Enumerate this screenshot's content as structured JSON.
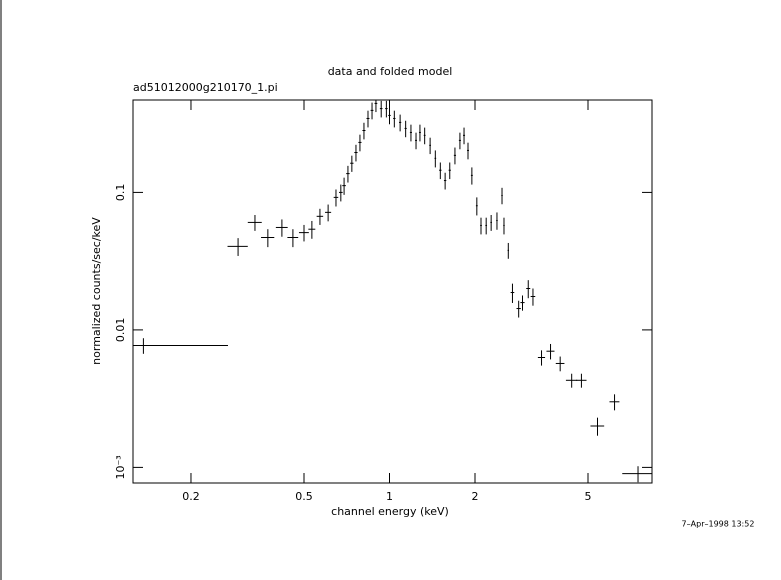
{
  "chart_data": {
    "type": "scatter",
    "title": "data and folded model",
    "subtitle": "ad51012000g210170_1.pi",
    "xlabel": "channel energy (keV)",
    "ylabel": "normalized counts/sec/keV",
    "annotation": "7–Apr–1998 13:52",
    "xscale": "log",
    "yscale": "log",
    "xlim": [
      0.125,
      8.4
    ],
    "ylim": [
      0.00077,
      0.47
    ],
    "xticks": [
      0.2,
      0.5,
      1,
      2,
      5
    ],
    "yticks": [
      0.1,
      0.01,
      {
        "value": 0.001,
        "label": "10⁻³"
      }
    ],
    "color": "#000000",
    "x": [
      0.136,
      0.293,
      0.336,
      0.373,
      0.418,
      0.457,
      0.5,
      0.533,
      0.569,
      0.608,
      0.648,
      0.674,
      0.692,
      0.714,
      0.737,
      0.762,
      0.787,
      0.813,
      0.84,
      0.868,
      0.896,
      0.935,
      0.975,
      1.0,
      1.04,
      1.09,
      1.14,
      1.19,
      1.24,
      1.28,
      1.33,
      1.39,
      1.45,
      1.51,
      1.57,
      1.63,
      1.7,
      1.77,
      1.83,
      1.89,
      1.95,
      2.03,
      2.1,
      2.19,
      2.28,
      2.39,
      2.49,
      2.53,
      2.62,
      2.71,
      2.85,
      2.94,
      3.08,
      3.2,
      3.43,
      3.69,
      3.99,
      4.38,
      4.74,
      5.4,
      6.2,
      7.5
    ],
    "xerr": [
      0.134,
      0.024,
      0.019,
      0.02,
      0.02,
      0.02,
      0.02,
      0.015,
      0.015,
      0.015,
      0.012,
      0.01,
      0.01,
      0.01,
      0.01,
      0.01,
      0.01,
      0.01,
      0.01,
      0.01,
      0.01,
      0.01,
      0.01,
      0.01,
      0.01,
      0.01,
      0.01,
      0.01,
      0.01,
      0.01,
      0.01,
      0.01,
      0.01,
      0.015,
      0.015,
      0.015,
      0.015,
      0.015,
      0.015,
      0.015,
      0.015,
      0.015,
      0.015,
      0.015,
      0.015,
      0.015,
      0.015,
      0.015,
      0.015,
      0.04,
      0.05,
      0.05,
      0.05,
      0.06,
      0.1,
      0.12,
      0.14,
      0.2,
      0.2,
      0.3,
      0.25,
      0.9
    ],
    "y": [
      0.0077,
      0.0405,
      0.0605,
      0.047,
      0.0556,
      0.047,
      0.051,
      0.054,
      0.067,
      0.0716,
      0.092,
      0.1,
      0.112,
      0.137,
      0.163,
      0.195,
      0.231,
      0.282,
      0.345,
      0.395,
      0.444,
      0.407,
      0.407,
      0.363,
      0.345,
      0.323,
      0.292,
      0.273,
      0.239,
      0.273,
      0.26,
      0.22,
      0.177,
      0.145,
      0.122,
      0.145,
      0.186,
      0.239,
      0.26,
      0.202,
      0.133,
      0.08,
      0.0575,
      0.0575,
      0.0605,
      0.0625,
      0.095,
      0.0575,
      0.0379,
      0.0187,
      0.0143,
      0.0158,
      0.02,
      0.0175,
      0.0063,
      0.007,
      0.0057,
      0.0043,
      0.0043,
      0.002,
      0.003,
      0.0009
    ],
    "yerr": [
      0.001,
      0.006,
      0.008,
      0.007,
      0.008,
      0.007,
      0.007,
      0.008,
      0.009,
      0.01,
      0.013,
      0.014,
      0.016,
      0.019,
      0.022,
      0.027,
      0.032,
      0.039,
      0.048,
      0.055,
      0.06,
      0.056,
      0.056,
      0.05,
      0.048,
      0.045,
      0.04,
      0.038,
      0.033,
      0.038,
      0.036,
      0.03,
      0.025,
      0.02,
      0.017,
      0.02,
      0.026,
      0.033,
      0.036,
      0.028,
      0.019,
      0.012,
      0.008,
      0.008,
      0.008,
      0.009,
      0.013,
      0.008,
      0.005,
      0.003,
      0.002,
      0.002,
      0.003,
      0.0025,
      0.0008,
      0.0009,
      0.0007,
      0.0005,
      0.0005,
      0.0003,
      0.0004,
      0.00012
    ]
  }
}
